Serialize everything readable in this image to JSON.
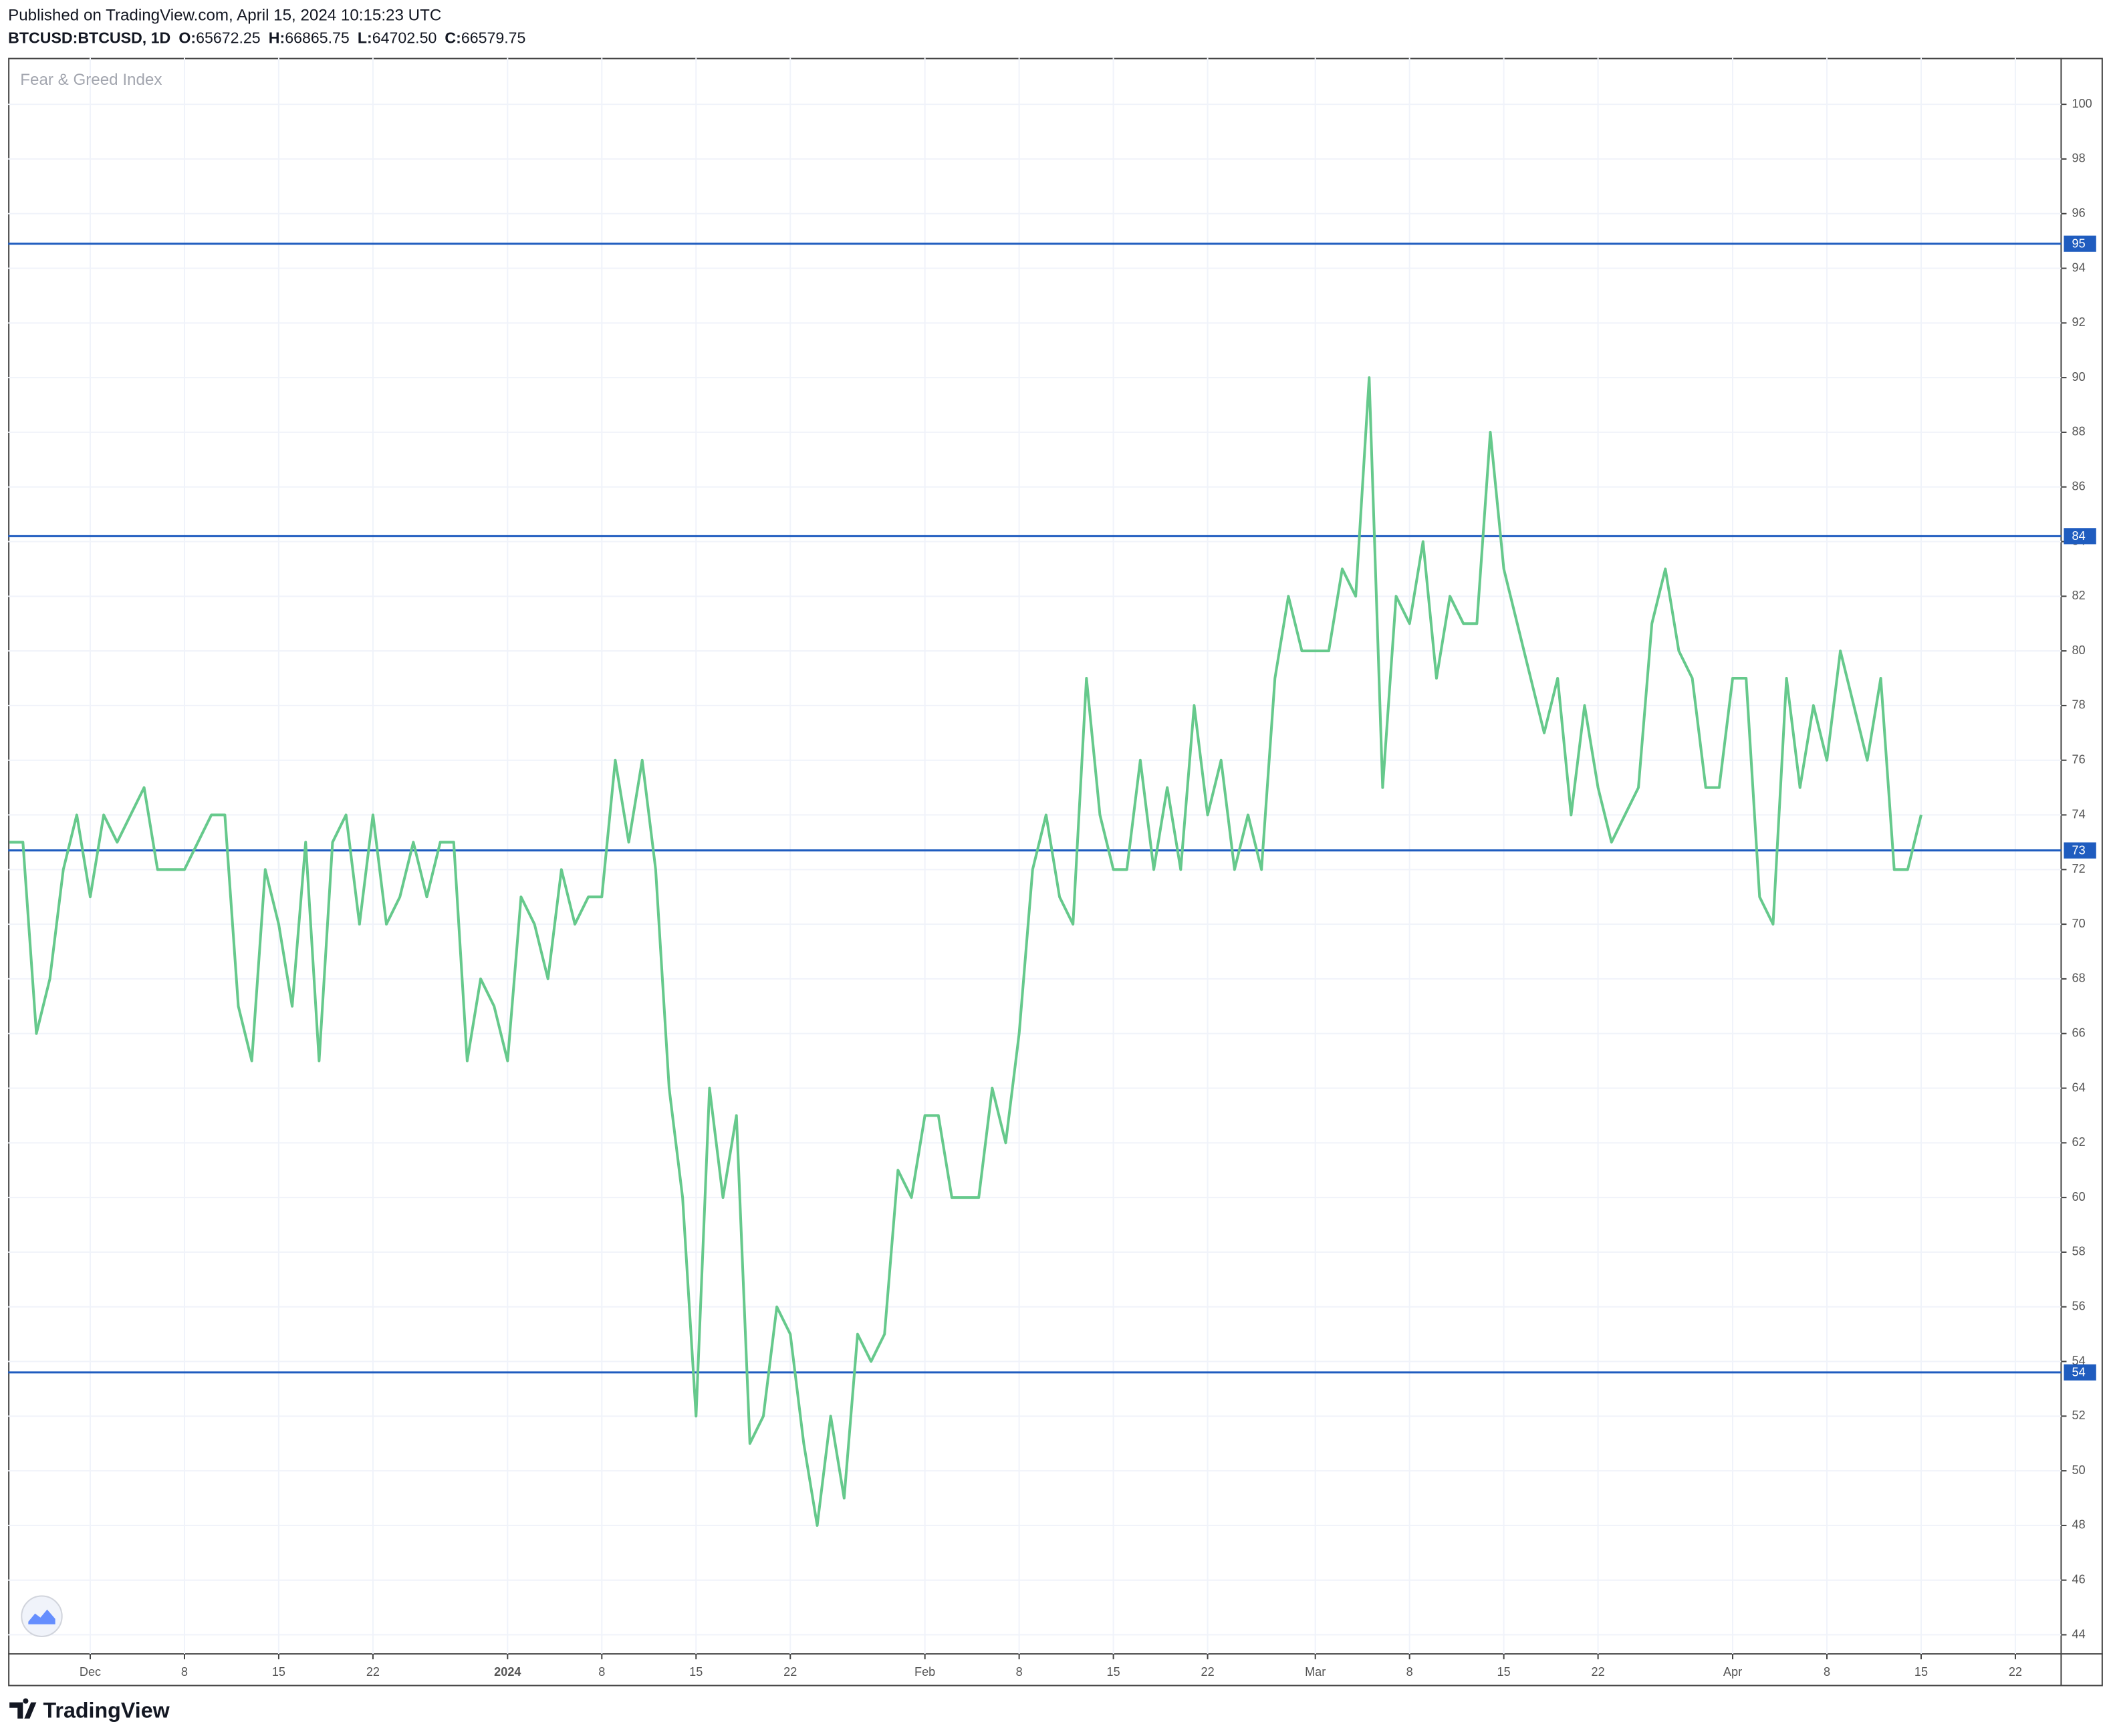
{
  "header": {
    "published": "Published on TradingView.com, April 15, 2024 10:15:23 UTC",
    "symbol": "BTCUSD:BTCUSD, 1D",
    "ohlc": [
      {
        "label": "O:",
        "value": "65672.25"
      },
      {
        "label": "H:",
        "value": "66865.75"
      },
      {
        "label": "L:",
        "value": "64702.50"
      },
      {
        "label": "C:",
        "value": "66579.75"
      }
    ]
  },
  "chart_data": {
    "type": "line",
    "title": "Fear & Greed Index",
    "color": "#66c98c",
    "grid": true,
    "values": [
      73,
      73,
      66,
      68,
      72,
      74,
      71,
      74,
      73,
      74,
      75,
      72,
      72,
      72,
      73,
      74,
      74,
      67,
      65,
      72,
      70,
      67,
      73,
      65,
      73,
      74,
      70,
      74,
      70,
      71,
      73,
      71,
      73,
      73,
      65,
      68,
      67,
      65,
      71,
      70,
      68,
      72,
      70,
      71,
      71,
      76,
      73,
      76,
      72,
      64,
      60,
      52,
      64,
      60,
      63,
      51,
      52,
      56,
      55,
      51,
      48,
      52,
      49,
      55,
      54,
      55,
      61,
      60,
      63,
      63,
      60,
      60,
      60,
      64,
      62,
      66,
      72,
      74,
      71,
      70,
      79,
      74,
      72,
      72,
      76,
      72,
      75,
      72,
      78,
      74,
      76,
      72,
      74,
      72,
      79,
      82,
      80,
      80,
      80,
      83,
      82,
      90,
      75,
      82,
      81,
      84,
      79,
      82,
      81,
      81,
      88,
      83,
      81,
      79,
      77,
      79,
      74,
      78,
      75,
      73,
      74,
      75,
      81,
      83,
      80,
      79,
      75,
      75,
      79,
      79,
      71,
      70,
      79,
      75,
      78,
      76,
      80,
      78,
      76,
      79,
      72,
      72,
      74
    ],
    "xlim": [
      -0.1,
      152.4
    ],
    "xticks": [
      {
        "value": 6,
        "label": "Dec"
      },
      {
        "value": 13,
        "label": "8"
      },
      {
        "value": 20,
        "label": "15"
      },
      {
        "value": 27,
        "label": "22"
      },
      {
        "value": 37,
        "label": "2024"
      },
      {
        "value": 44,
        "label": "8"
      },
      {
        "value": 51,
        "label": "15"
      },
      {
        "value": 58,
        "label": "22"
      },
      {
        "value": 68,
        "label": "Feb"
      },
      {
        "value": 75,
        "label": "8"
      },
      {
        "value": 82,
        "label": "15"
      },
      {
        "value": 89,
        "label": "22"
      },
      {
        "value": 97,
        "label": "Mar"
      },
      {
        "value": 104,
        "label": "8"
      },
      {
        "value": 111,
        "label": "15"
      },
      {
        "value": 118,
        "label": "22"
      },
      {
        "value": 128,
        "label": "Apr"
      },
      {
        "value": 135,
        "label": "8"
      },
      {
        "value": 142,
        "label": "15"
      },
      {
        "value": 149,
        "label": "22"
      }
    ],
    "ylim": [
      43.3,
      101.7
    ],
    "yticks": [
      44,
      46,
      48,
      50,
      52,
      54,
      56,
      58,
      60,
      62,
      64,
      66,
      68,
      70,
      72,
      74,
      76,
      78,
      80,
      82,
      84,
      86,
      88,
      90,
      92,
      94,
      96,
      98,
      100
    ],
    "levels": [
      {
        "value": 94.9,
        "label": "95"
      },
      {
        "value": 84.2,
        "label": "84"
      },
      {
        "value": 72.7,
        "label": "73"
      },
      {
        "value": 53.6,
        "label": "54"
      }
    ],
    "level_color": "#1f5cbf"
  },
  "footer": {
    "brand": "TradingView"
  }
}
